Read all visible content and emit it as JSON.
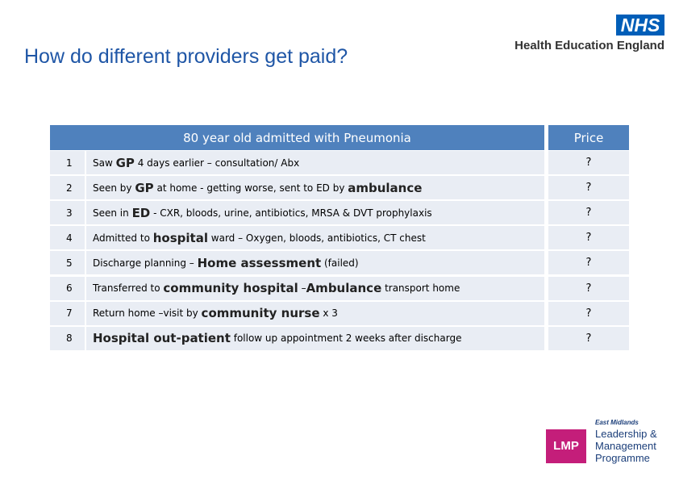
{
  "header": {
    "title": "How do different providers get paid?",
    "nhs": "NHS",
    "org": "Health Education England"
  },
  "table": {
    "header": "80 year old admitted with Pneumonia",
    "price_header": "Price",
    "rows": [
      {
        "number": "1",
        "parts": [
          {
            "text": "Saw "
          },
          {
            "text": "GP",
            "em": true
          },
          {
            "text": " 4 days earlier – consultation/ Abx"
          }
        ],
        "price": "?"
      },
      {
        "number": "2",
        "parts": [
          {
            "text": "Seen by "
          },
          {
            "text": "GP",
            "em": true
          },
          {
            "text": " at home - getting worse, sent to ED by "
          },
          {
            "text": "ambulance",
            "em": true
          }
        ],
        "price": "?"
      },
      {
        "number": "3",
        "parts": [
          {
            "text": "Seen in "
          },
          {
            "text": "ED",
            "em": true
          },
          {
            "text": " - CXR, bloods, urine, antibiotics, MRSA & DVT prophylaxis"
          }
        ],
        "price": "?"
      },
      {
        "number": "4",
        "parts": [
          {
            "text": "Admitted to "
          },
          {
            "text": "hospital",
            "em": true
          },
          {
            "text": " ward – Oxygen, bloods, antibiotics, CT chest"
          }
        ],
        "price": "?"
      },
      {
        "number": "5",
        "parts": [
          {
            "text": "Discharge planning – "
          },
          {
            "text": "Home assessment",
            "em": true
          },
          {
            "text": " (failed)"
          }
        ],
        "price": "?"
      },
      {
        "number": "6",
        "parts": [
          {
            "text": "Transferred to "
          },
          {
            "text": "community hospital",
            "em": true
          },
          {
            "text": " –"
          },
          {
            "text": "Ambulance",
            "em": true
          },
          {
            "text": " transport home"
          }
        ],
        "price": "?"
      },
      {
        "number": "7",
        "parts": [
          {
            "text": "Return home –visit by "
          },
          {
            "text": "community nurse",
            "em": true
          },
          {
            "text": " x 3"
          }
        ],
        "price": "?"
      },
      {
        "number": "8",
        "parts": [
          {
            "text": "Hospital out-patient",
            "em": true
          },
          {
            "text": " follow up appointment 2 weeks after discharge"
          }
        ],
        "price": "?"
      }
    ]
  },
  "logo": {
    "region": "East Midlands",
    "mark": "LMP",
    "lines": [
      "Leadership &",
      "Management",
      "Programme"
    ]
  }
}
